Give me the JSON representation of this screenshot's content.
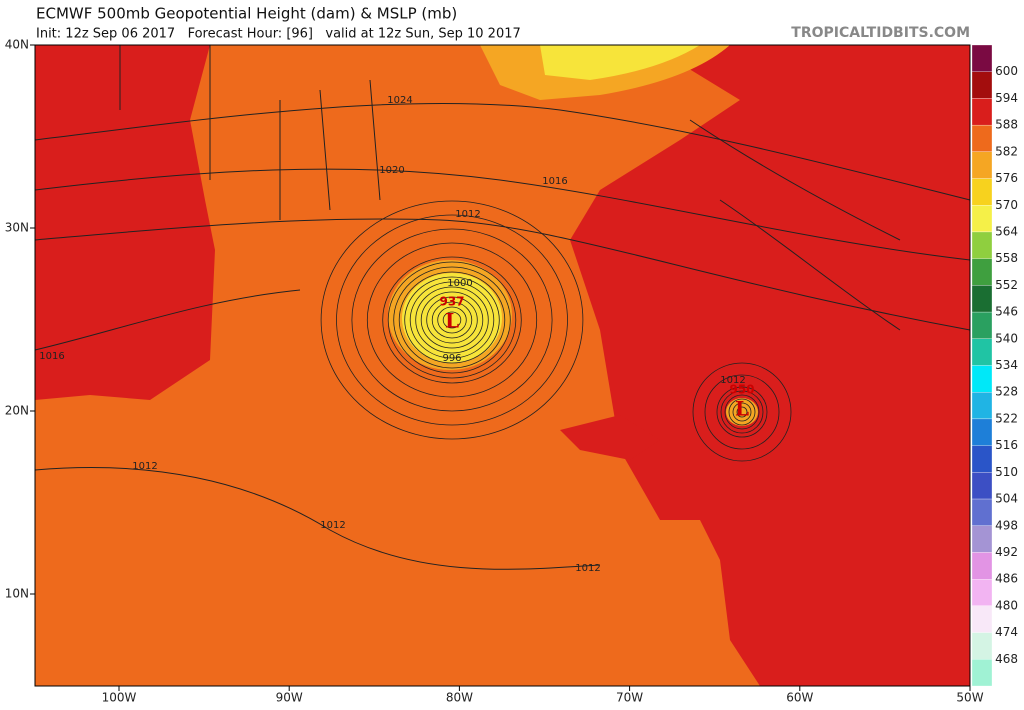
{
  "header": {
    "title": "ECMWF 500mb Geopotential Height (dam) & MSLP (mb)",
    "subtitle": "Init: 12z Sep 06 2017   Forecast Hour: [96]   valid at 12z Sun, Sep 10 2017",
    "brand": "TROPICALTIDBITS.COM"
  },
  "map": {
    "lon_labels": [
      {
        "value": -100,
        "label": "100W"
      },
      {
        "value": -90,
        "label": "90W"
      },
      {
        "value": -80,
        "label": "80W"
      },
      {
        "value": -70,
        "label": "70W"
      },
      {
        "value": -60,
        "label": "60W"
      },
      {
        "value": -50,
        "label": "50W"
      }
    ],
    "lat_labels": [
      {
        "value": 40,
        "label": "40N"
      },
      {
        "value": 30,
        "label": "30N"
      },
      {
        "value": 20,
        "label": "20N"
      },
      {
        "value": 10,
        "label": "10N"
      }
    ],
    "lows": [
      {
        "symbol": "L",
        "pressure": "937"
      },
      {
        "symbol": "L",
        "pressure": "950"
      }
    ],
    "contour_labels": [
      "1024",
      "1020",
      "1016",
      "1012",
      "1000",
      "996",
      "1012",
      "1016",
      "1012",
      "1012",
      "1012"
    ]
  },
  "colorbar": {
    "labels": [
      "600",
      "594",
      "588",
      "582",
      "576",
      "570",
      "564",
      "558",
      "552",
      "546",
      "540",
      "534",
      "528",
      "522",
      "516",
      "510",
      "504",
      "498",
      "492",
      "486",
      "480",
      "474",
      "468"
    ]
  }
}
